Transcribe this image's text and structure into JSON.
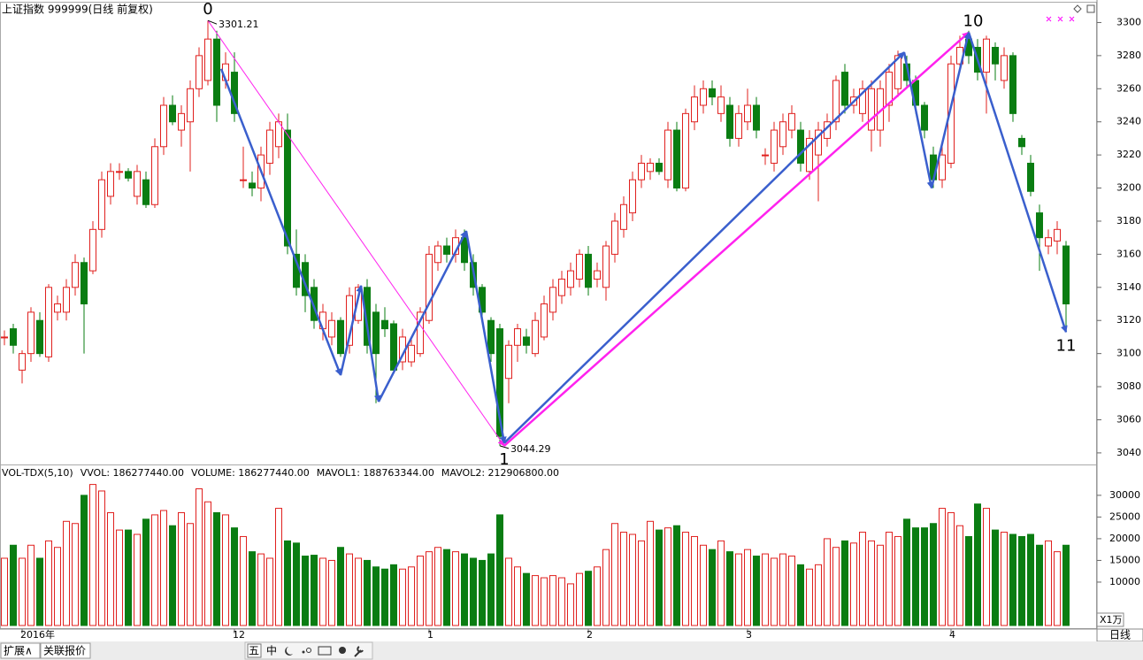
{
  "chart_data": [
    {
      "type": "candlestick",
      "title": "上证指数 999999(日线 前复权)",
      "up_color": "#e0201e",
      "down_color": "#0a7d12",
      "ylim": [
        3033,
        3312
      ],
      "yticks": [
        3040,
        3060,
        3080,
        3100,
        3120,
        3140,
        3160,
        3180,
        3200,
        3220,
        3240,
        3260,
        3280,
        3300
      ],
      "xticks": [
        {
          "value": 2,
          "label": "2016年"
        },
        {
          "value": 26,
          "label": "12"
        },
        {
          "value": 48,
          "label": "1"
        },
        {
          "value": 66,
          "label": "2"
        },
        {
          "value": 84,
          "label": "3"
        },
        {
          "value": 107,
          "label": "4"
        }
      ],
      "ohlc": [
        [
          3110,
          3114,
          3105,
          3110
        ],
        [
          3115,
          3118,
          3100,
          3105
        ],
        [
          3090,
          3102,
          3082,
          3100
        ],
        [
          3100,
          3128,
          3095,
          3125
        ],
        [
          3120,
          3125,
          3098,
          3100
        ],
        [
          3098,
          3142,
          3095,
          3140
        ],
        [
          3125,
          3135,
          3120,
          3130
        ],
        [
          3125,
          3145,
          3120,
          3140
        ],
        [
          3140,
          3160,
          3135,
          3155
        ],
        [
          3155,
          3158,
          3100,
          3130
        ],
        [
          3150,
          3180,
          3148,
          3175
        ],
        [
          3175,
          3210,
          3170,
          3205
        ],
        [
          3195,
          3215,
          3190,
          3210
        ],
        [
          3210,
          3215,
          3205,
          3210
        ],
        [
          3210,
          3212,
          3204,
          3206
        ],
        [
          3195,
          3214,
          3190,
          3210
        ],
        [
          3205,
          3210,
          3188,
          3190
        ],
        [
          3190,
          3230,
          3188,
          3225
        ],
        [
          3225,
          3255,
          3220,
          3250
        ],
        [
          3250,
          3256,
          3238,
          3240
        ],
        [
          3235,
          3250,
          3225,
          3245
        ],
        [
          3240,
          3265,
          3210,
          3260
        ],
        [
          3260,
          3285,
          3255,
          3280
        ],
        [
          3265,
          3301.21,
          3262,
          3290
        ],
        [
          3290,
          3295,
          3240,
          3250
        ],
        [
          3265,
          3282,
          3260,
          3275
        ],
        [
          3270,
          3282,
          3240,
          3245
        ],
        [
          3205,
          3225,
          3200,
          3205
        ],
        [
          3203,
          3210,
          3195,
          3200
        ],
        [
          3200,
          3225,
          3192,
          3220
        ],
        [
          3215,
          3240,
          3208,
          3235
        ],
        [
          3225,
          3245,
          3218,
          3240
        ],
        [
          3235,
          3245,
          3160,
          3165
        ],
        [
          3160,
          3175,
          3135,
          3140
        ],
        [
          3155,
          3160,
          3125,
          3135
        ],
        [
          3140,
          3145,
          3115,
          3120
        ],
        [
          3115,
          3130,
          3108,
          3125
        ],
        [
          3110,
          3125,
          3105,
          3120
        ],
        [
          3120,
          3122,
          3098,
          3100
        ],
        [
          3105,
          3140,
          3100,
          3135
        ],
        [
          3120,
          3142,
          3118,
          3140
        ],
        [
          3140,
          3145,
          3100,
          3105
        ],
        [
          3125,
          3130,
          3070,
          3100
        ],
        [
          3120,
          3128,
          3110,
          3115
        ],
        [
          3118,
          3120,
          3088,
          3090
        ],
        [
          3095,
          3115,
          3090,
          3110
        ],
        [
          3095,
          3110,
          3092,
          3105
        ],
        [
          3100,
          3128,
          3098,
          3125
        ],
        [
          3120,
          3165,
          3118,
          3160
        ],
        [
          3155,
          3168,
          3150,
          3165
        ],
        [
          3165,
          3170,
          3155,
          3160
        ],
        [
          3160,
          3175,
          3155,
          3170
        ],
        [
          3170,
          3175,
          3150,
          3155
        ],
        [
          3155,
          3160,
          3135,
          3140
        ],
        [
          3140,
          3142,
          3120,
          3125
        ],
        [
          3120,
          3122,
          3095,
          3100
        ],
        [
          3115,
          3118,
          3044.29,
          3050
        ],
        [
          3085,
          3108,
          3070,
          3105
        ],
        [
          3105,
          3118,
          3095,
          3115
        ],
        [
          3110,
          3115,
          3100,
          3105
        ],
        [
          3100,
          3125,
          3098,
          3120
        ],
        [
          3110,
          3135,
          3108,
          3130
        ],
        [
          3125,
          3145,
          3120,
          3140
        ],
        [
          3135,
          3150,
          3130,
          3145
        ],
        [
          3140,
          3155,
          3135,
          3150
        ],
        [
          3145,
          3163,
          3140,
          3160
        ],
        [
          3160,
          3165,
          3135,
          3140
        ],
        [
          3145,
          3155,
          3140,
          3150
        ],
        [
          3140,
          3168,
          3132,
          3165
        ],
        [
          3160,
          3185,
          3155,
          3180
        ],
        [
          3175,
          3195,
          3170,
          3190
        ],
        [
          3185,
          3210,
          3180,
          3205
        ],
        [
          3205,
          3220,
          3200,
          3215
        ],
        [
          3210,
          3218,
          3205,
          3215
        ],
        [
          3215,
          3218,
          3208,
          3210
        ],
        [
          3205,
          3240,
          3200,
          3235
        ],
        [
          3235,
          3240,
          3198,
          3200
        ],
        [
          3200,
          3248,
          3198,
          3245
        ],
        [
          3240,
          3262,
          3235,
          3255
        ],
        [
          3250,
          3265,
          3245,
          3260
        ],
        [
          3260,
          3265,
          3250,
          3255
        ],
        [
          3245,
          3262,
          3240,
          3255
        ],
        [
          3250,
          3255,
          3225,
          3230
        ],
        [
          3230,
          3250,
          3225,
          3245
        ],
        [
          3240,
          3260,
          3235,
          3250
        ],
        [
          3250,
          3255,
          3230,
          3235
        ],
        [
          3220,
          3224,
          3214,
          3220
        ],
        [
          3215,
          3240,
          3210,
          3235
        ],
        [
          3225,
          3245,
          3220,
          3240
        ],
        [
          3235,
          3250,
          3230,
          3245
        ],
        [
          3235,
          3240,
          3210,
          3215
        ],
        [
          3210,
          3235,
          3205,
          3230
        ],
        [
          3220,
          3240,
          3192,
          3235
        ],
        [
          3230,
          3245,
          3225,
          3240
        ],
        [
          3240,
          3268,
          3235,
          3265
        ],
        [
          3270,
          3275,
          3245,
          3250
        ],
        [
          3250,
          3260,
          3245,
          3255
        ],
        [
          3245,
          3265,
          3240,
          3260
        ],
        [
          3235,
          3265,
          3222,
          3260
        ],
        [
          3235,
          3265,
          3225,
          3260
        ],
        [
          3250,
          3275,
          3240,
          3270
        ],
        [
          3260,
          3283,
          3255,
          3280
        ],
        [
          3275,
          3280,
          3260,
          3265
        ],
        [
          3265,
          3268,
          3245,
          3250
        ],
        [
          3250,
          3252,
          3230,
          3235
        ],
        [
          3220,
          3225,
          3200,
          3205
        ],
        [
          3205,
          3225,
          3200,
          3220
        ],
        [
          3215,
          3280,
          3212,
          3275
        ],
        [
          3275,
          3292,
          3270,
          3285
        ],
        [
          3290,
          3295,
          3275,
          3280
        ],
        [
          3285,
          3290,
          3265,
          3270
        ],
        [
          3270,
          3292,
          3245,
          3290
        ],
        [
          3285,
          3288,
          3265,
          3275
        ],
        [
          3265,
          3285,
          3260,
          3280
        ],
        [
          3280,
          3282,
          3240,
          3245
        ],
        [
          3230,
          3232,
          3220,
          3225
        ],
        [
          3215,
          3220,
          3195,
          3198
        ],
        [
          3185,
          3190,
          3150,
          3170
        ],
        [
          3165,
          3175,
          3160,
          3170
        ],
        [
          3168,
          3180,
          3160,
          3175
        ],
        [
          3165,
          3168,
          3115,
          3130
        ]
      ],
      "waves": [
        {
          "color": "#ff22ee",
          "x": [
            23,
            56.5,
            109
          ],
          "y": [
            3301.21,
            3044.29,
            3294
          ]
        },
        {
          "color": "#3a5fcd",
          "x": [
            24.5,
            38,
            40.3,
            42.3,
            52.2,
            56.5,
            101.7,
            104.8,
            109,
            120
          ],
          "y": [
            3272,
            3087,
            3141,
            3071,
            3174,
            3046,
            3282,
            3200,
            3294,
            3113
          ]
        }
      ],
      "wave_labels": [
        {
          "text": "0",
          "x": 23,
          "y": 3301.21,
          "pos": "above"
        },
        {
          "text": "1",
          "x": 56.5,
          "y": 3044.29,
          "pos": "below"
        },
        {
          "text": "10",
          "x": 109.5,
          "y": 3294,
          "pos": "above"
        },
        {
          "text": "11",
          "x": 120,
          "y": 3113,
          "pos": "below"
        }
      ]
    },
    {
      "type": "volume",
      "unit_label": "X1万",
      "legend": [
        {
          "text": "VOL-TDX(5,10)",
          "color": "#000000"
        },
        {
          "text": "VVOL: 186277440.00",
          "color": "#000000"
        },
        {
          "text": "VOLUME: 186277440.00",
          "color": "#d41cc8"
        },
        {
          "text": "MAVOL1: 188763344.00",
          "color": "#d41cc8"
        },
        {
          "text": "MAVOL2: 212906800.00",
          "color": "#808080"
        }
      ],
      "ylim": [
        0,
        36700
      ],
      "yticks": [
        10000,
        15000,
        20000,
        25000,
        30000
      ],
      "values": [
        15500,
        18500,
        15500,
        18500,
        15500,
        19500,
        18000,
        24000,
        23500,
        30000,
        32500,
        31000,
        26000,
        22000,
        22000,
        21000,
        24500,
        25500,
        26500,
        23000,
        26000,
        23500,
        31500,
        28500,
        26000,
        25500,
        22500,
        20500,
        17000,
        16500,
        15500,
        27000,
        19500,
        19000,
        16000,
        16200,
        15500,
        15000,
        18000,
        16500,
        15500,
        15000,
        13500,
        13000,
        14000,
        13000,
        13500,
        16000,
        17000,
        18000,
        17500,
        17000,
        16500,
        15500,
        15000,
        16500,
        25500,
        15500,
        13500,
        12000,
        11500,
        11000,
        11500,
        11000,
        9600,
        12000,
        12500,
        13500,
        17500,
        23500,
        21500,
        21000,
        19500,
        24000,
        22000,
        22500,
        23000,
        21500,
        20500,
        18500,
        17500,
        19500,
        17000,
        16500,
        17500,
        16000,
        16500,
        15500,
        16500,
        16000,
        14000,
        13000,
        14000,
        20000,
        18000,
        19500,
        19000,
        21500,
        19500,
        18500,
        21500,
        20500,
        24500,
        22500,
        22500,
        23500,
        27000,
        26000,
        23000,
        20500,
        28000,
        27000,
        22000,
        21500,
        21000,
        20500,
        21000,
        18500,
        19500,
        17000,
        18500
      ]
    }
  ],
  "period_label": "日线",
  "tabs": [
    "扩展∧",
    "关联报价"
  ],
  "toolbar": [
    "五",
    "中"
  ]
}
